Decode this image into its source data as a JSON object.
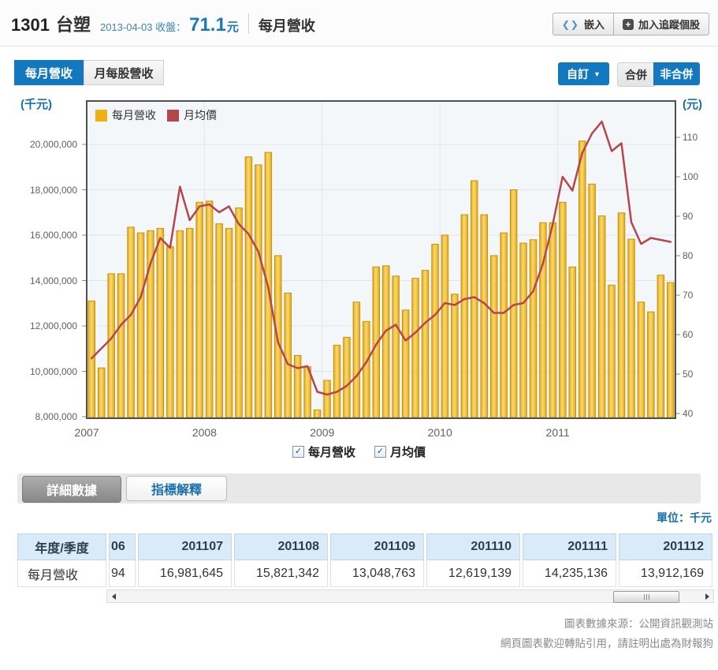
{
  "header": {
    "stock_id": "1301",
    "stock_name": "台塑",
    "close_info": "2013-04-03 收盤：",
    "close_price": "71.1",
    "close_unit": "元",
    "page_title": "每月營收",
    "embed_button": "嵌入",
    "track_button": "加入追蹤個股"
  },
  "tabs": [
    {
      "label": "每月營收",
      "active": true
    },
    {
      "label": "月每股營收",
      "active": false
    }
  ],
  "controls": {
    "custom_button": "自訂",
    "merged_button": "合併",
    "unmerged_button": "非合併"
  },
  "colors": {
    "accent_blue": "#1478be",
    "link_blue": "#1a6fad",
    "bar_yellow": "#eeb111",
    "line_red": "#b5464b",
    "plot_bg": "#f4f7fa",
    "grid": "#dfe5ea",
    "table_header_bg": "#d9eaf8"
  },
  "checkboxes": [
    {
      "label": "每月營收",
      "checked": true
    },
    {
      "label": "月均價",
      "checked": true
    }
  ],
  "toolbar": {
    "detail_button": "詳細數據",
    "indicator_button": "指標解釋"
  },
  "table": {
    "unit_label": "單位：千元",
    "corner_header": "年度/季度",
    "row_label": "每月營收",
    "columns": [
      {
        "header": "06",
        "value": "94"
      },
      {
        "header": "201107",
        "value": "16,981,645"
      },
      {
        "header": "201108",
        "value": "15,821,342"
      },
      {
        "header": "201109",
        "value": "13,048,763"
      },
      {
        "header": "201110",
        "value": "12,619,139"
      },
      {
        "header": "201111",
        "value": "14,235,136"
      },
      {
        "header": "201112",
        "value": "13,912,169"
      }
    ]
  },
  "footer": {
    "line1": "圖表數據來源：公開資訊觀測站",
    "line2": "網頁圖表歡迎轉貼引用，請註明出處為財報狗"
  },
  "chart_data": {
    "type": "bar+line",
    "unit_left": "(千元)",
    "unit_right": "(元)",
    "left_axis_range": [
      8000000,
      20000000
    ],
    "right_axis_range": [
      40,
      115
    ],
    "left_ticks": [
      "20,000,000",
      "18,000,000",
      "16,000,000",
      "14,000,000",
      "12,000,000",
      "10,000,000",
      "8,000,000"
    ],
    "left_tick_values": [
      20000000,
      18000000,
      16000000,
      14000000,
      12000000,
      10000000,
      8000000
    ],
    "right_ticks": [
      "110",
      "100",
      "90",
      "80",
      "70",
      "60",
      "50",
      "40"
    ],
    "right_tick_values": [
      110,
      100,
      90,
      80,
      70,
      60,
      50,
      40
    ],
    "x_years": [
      "2007",
      "2008",
      "2009",
      "2010",
      "2011"
    ],
    "grid": true,
    "legend_position": "top-left-inside",
    "legend": [
      {
        "label": "每月營收",
        "color": "#eeb111",
        "type": "bar"
      },
      {
        "label": "月均價",
        "color": "#b5464b",
        "type": "line"
      }
    ],
    "months": [
      "2007-01",
      "2007-02",
      "2007-03",
      "2007-04",
      "2007-05",
      "2007-06",
      "2007-07",
      "2007-08",
      "2007-09",
      "2007-10",
      "2007-11",
      "2007-12",
      "2008-01",
      "2008-02",
      "2008-03",
      "2008-04",
      "2008-05",
      "2008-06",
      "2008-07",
      "2008-08",
      "2008-09",
      "2008-10",
      "2008-11",
      "2008-12",
      "2009-01",
      "2009-02",
      "2009-03",
      "2009-04",
      "2009-05",
      "2009-06",
      "2009-07",
      "2009-08",
      "2009-09",
      "2009-10",
      "2009-11",
      "2009-12",
      "2010-01",
      "2010-02",
      "2010-03",
      "2010-04",
      "2010-05",
      "2010-06",
      "2010-07",
      "2010-08",
      "2010-09",
      "2010-10",
      "2010-11",
      "2010-12",
      "2011-01",
      "2011-02",
      "2011-03",
      "2011-04",
      "2011-05",
      "2011-06",
      "2011-07",
      "2011-08",
      "2011-09",
      "2011-10",
      "2011-11",
      "2011-12"
    ],
    "series": [
      {
        "name": "每月營收",
        "type": "bar",
        "axis": "left",
        "values": [
          13100000,
          10150000,
          14300000,
          14300000,
          16350000,
          16100000,
          16200000,
          16300000,
          15500000,
          16200000,
          16300000,
          17450000,
          17500000,
          16500000,
          16300000,
          17200000,
          19450000,
          19100000,
          19650000,
          15100000,
          13450000,
          10700000,
          10200000,
          8300000,
          9600000,
          11150000,
          11500000,
          13050000,
          12200000,
          14600000,
          14650000,
          14200000,
          12700000,
          14100000,
          14450000,
          15600000,
          16000000,
          13400000,
          16900000,
          18400000,
          16900000,
          15100000,
          16100000,
          18000000,
          15650000,
          15800000,
          16550000,
          16550000,
          17450000,
          14600000,
          20150000,
          18250000,
          16850000,
          13800000,
          16981645,
          15821342,
          13048763,
          12619139,
          14235136,
          13912169
        ]
      },
      {
        "name": "月均價",
        "type": "line",
        "axis": "right",
        "values": [
          54,
          56.5,
          59,
          62.5,
          65,
          69.5,
          78,
          84.5,
          82,
          97.5,
          89,
          92.5,
          93,
          91,
          92.5,
          88,
          85.5,
          81,
          72,
          58,
          52.5,
          51.5,
          52,
          45.5,
          44.8,
          45.5,
          47,
          49.5,
          53,
          57.5,
          61,
          62.5,
          58.5,
          60.5,
          63,
          65,
          68,
          67.5,
          69,
          69.5,
          68,
          65.5,
          65.5,
          67.5,
          68,
          71,
          78,
          88,
          100,
          96.5,
          106,
          111,
          114,
          106.5,
          108.5,
          88.5,
          83,
          84.5,
          84,
          83.5
        ]
      }
    ]
  }
}
